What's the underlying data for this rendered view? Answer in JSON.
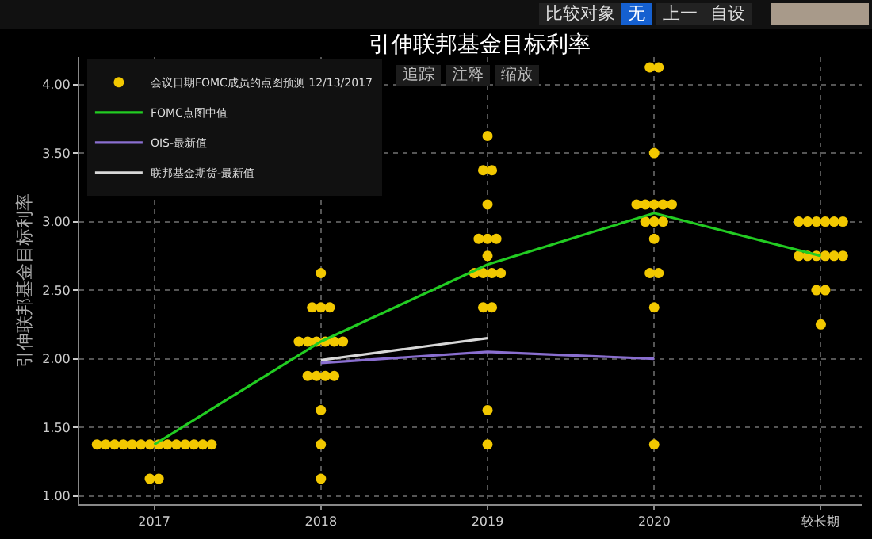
{
  "chart_data": {
    "type": "scatter",
    "title": "引伸联邦基金目标利率",
    "ylabel": "引伸联邦基金目标利率",
    "categories": [
      "2017",
      "2018",
      "2019",
      "2020",
      "较长期"
    ],
    "series": [
      {
        "name": "会议日期FOMC成员的点图预测 12/13/2017",
        "color": "#f2c800",
        "values": [
          1.375,
          2.625,
          3.625,
          4.125,
          3
        ]
      },
      {
        "color": "#f2c800",
        "values": [
          1.375,
          2.375,
          3.375,
          4.125,
          3
        ]
      },
      {
        "color": "#f2c800",
        "values": [
          1.375,
          2.375,
          3.375,
          3.5,
          3
        ]
      },
      {
        "color": "#f2c800",
        "values": [
          1.375,
          2.375,
          3.125,
          3.125,
          3
        ]
      },
      {
        "color": "#f2c800",
        "values": [
          1.375,
          2.125,
          2.875,
          3.125,
          3
        ]
      },
      {
        "color": "#f2c800",
        "values": [
          1.375,
          2.125,
          2.875,
          3.125,
          3
        ]
      },
      {
        "color": "#f2c800",
        "values": [
          1.375,
          2.125,
          2.875,
          3.125,
          2.75
        ]
      },
      {
        "color": "#f2c800",
        "values": [
          1.375,
          2.125,
          2.75,
          3.125,
          2.75
        ]
      },
      {
        "color": "#f2c800",
        "values": [
          1.375,
          2.125,
          2.625,
          3,
          2.75
        ]
      },
      {
        "color": "#f2c800",
        "values": [
          1.375,
          2.125,
          2.625,
          3,
          2.75
        ]
      },
      {
        "color": "#f2c800",
        "values": [
          1.375,
          1.875,
          2.625,
          3,
          2.75
        ]
      },
      {
        "color": "#f2c800",
        "values": [
          1.375,
          1.875,
          2.625,
          2.875,
          2.75
        ]
      },
      {
        "color": "#f2c800",
        "values": [
          1.375,
          1.875,
          2.375,
          2.625,
          2.5
        ]
      },
      {
        "color": "#f2c800",
        "values": [
          1.375,
          1.875,
          2.375,
          2.625,
          2.5
        ]
      },
      {
        "color": "#f2c800",
        "values": [
          1.125,
          1.625,
          1.625,
          2.375,
          2.25
        ]
      },
      {
        "color": "#f2c800",
        "values": [
          1.125,
          1.375,
          1.375,
          1.375,
          null
        ]
      },
      {
        "color": "#f2c800",
        "values": [
          null,
          1.125,
          null,
          null,
          null
        ]
      },
      {
        "name": "FOMC点图中值",
        "color": "#22cc22",
        "type": "line",
        "marker": "none",
        "values": [
          1.375,
          2.125,
          2.6875,
          3.0625,
          2.75
        ]
      },
      {
        "name": "OIS-最新值",
        "color": "#8a6fd0",
        "type": "line",
        "marker": "none",
        "values": [
          null,
          1.97,
          2.05,
          2.0,
          null
        ]
      },
      {
        "name": "联邦基金期货-最新值",
        "color": "#d8d8d8",
        "type": "line",
        "marker": "none",
        "values": [
          null,
          1.99,
          2.15,
          null,
          null
        ]
      }
    ],
    "ylim": [
      0.94,
      4.2
    ],
    "yticks": [
      {
        "value": 1,
        "label": "1.00"
      },
      {
        "value": 1.5,
        "label": "1.50"
      },
      {
        "value": 2,
        "label": "2.00"
      },
      {
        "value": 2.5,
        "label": "2.50"
      },
      {
        "value": 3,
        "label": "3.00"
      },
      {
        "value": 3.5,
        "label": "3.50"
      },
      {
        "value": 4,
        "label": "4.00"
      }
    ],
    "grid": true,
    "legend": "top left",
    "marker": "circle",
    "annotations": [
      "比较对象",
      "无",
      "上一",
      "自设",
      "追踪",
      "注释",
      "缩放"
    ]
  }
}
